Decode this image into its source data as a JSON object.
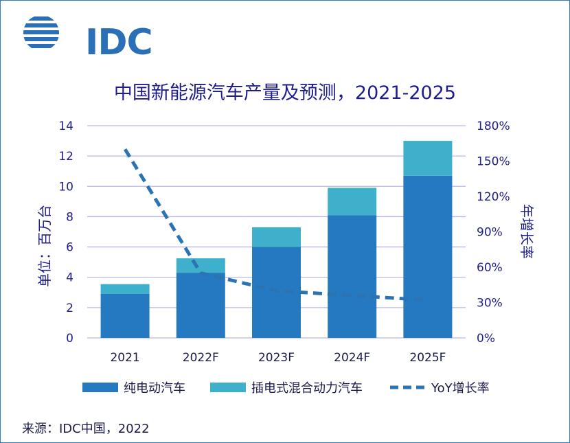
{
  "logo": {
    "text": "IDC"
  },
  "source": "来源：IDC中国，2022",
  "colors": {
    "bev": "#2479c0",
    "phev": "#3fb0cc",
    "yoy": "#2b73b3",
    "grid": "#b8b8e8",
    "axis_text": "#1f1d8a",
    "category_text": "#1a1a4a"
  },
  "chart_data": {
    "type": "bar",
    "stacked": true,
    "title": "中国新能源汽车产量及预测，2021-2025",
    "categories": [
      "2021",
      "2022F",
      "2023F",
      "2024F",
      "2025F"
    ],
    "series": [
      {
        "name": "纯电动汽车",
        "type": "bar",
        "axis": "left",
        "values": [
          2.9,
          4.3,
          6.0,
          8.1,
          10.7
        ]
      },
      {
        "name": "插电式混合动力汽车",
        "type": "bar",
        "axis": "left",
        "values": [
          0.65,
          0.95,
          1.3,
          1.8,
          2.3
        ]
      },
      {
        "name": "YoY增长率",
        "type": "line",
        "style": "dashed",
        "axis": "right",
        "values": [
          160,
          55,
          40,
          36,
          32
        ]
      }
    ],
    "ylabel": "单位：百万台",
    "y2label": "年增长率",
    "ylim": [
      0,
      14
    ],
    "y2lim": [
      0,
      180
    ],
    "yticks": [
      "0",
      "2",
      "4",
      "6",
      "8",
      "10",
      "12",
      "14"
    ],
    "y2ticks": [
      "0%",
      "30%",
      "60%",
      "90%",
      "120%",
      "150%",
      "180%"
    ],
    "legend": [
      "纯电动汽车",
      "插电式混合动力汽车",
      "YoY增长率"
    ],
    "legend_position": "bottom",
    "grid": true
  }
}
